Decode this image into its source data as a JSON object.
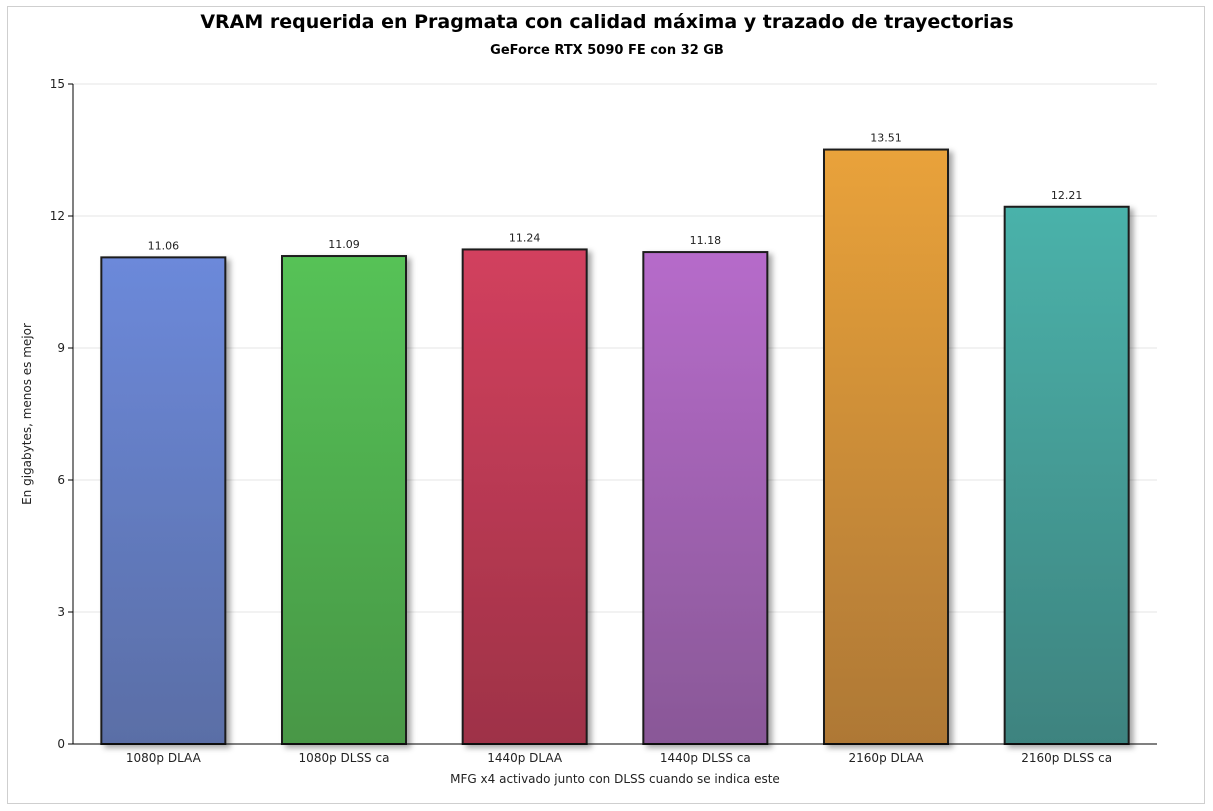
{
  "chart_data": {
    "type": "bar",
    "title": "VRAM requerida en Pragmata con calidad máxima y trazado de trayectorias",
    "subtitle": "GeForce RTX 5090 FE con 32 GB",
    "xlabel": "MFG x4 activado junto con DLSS cuando se indica este",
    "ylabel": "En gigabytes, menos es mejor",
    "ylim": [
      0,
      15
    ],
    "yticks": [
      0,
      3,
      6,
      9,
      12,
      15
    ],
    "grid": true,
    "categories": [
      "1080p DLAA",
      "1080p DLSS ca",
      "1440p DLAA",
      "1440p DLSS ca",
      "2160p DLAA",
      "2160p DLSS ca"
    ],
    "values": [
      11.06,
      11.09,
      11.24,
      11.18,
      13.51,
      12.21
    ],
    "data_labels": [
      "11.06",
      "11.09",
      "11.24",
      "11.18",
      "13.51",
      "12.21"
    ],
    "colors": [
      [
        "#6c89da",
        "#5a6ea6"
      ],
      [
        "#56c257",
        "#489746"
      ],
      [
        "#d2405e",
        "#9e3247"
      ],
      [
        "#b66bca",
        "#895897"
      ],
      [
        "#e9a23a",
        "#ae7836"
      ],
      [
        "#4ab2aa",
        "#3e837f"
      ]
    ]
  }
}
